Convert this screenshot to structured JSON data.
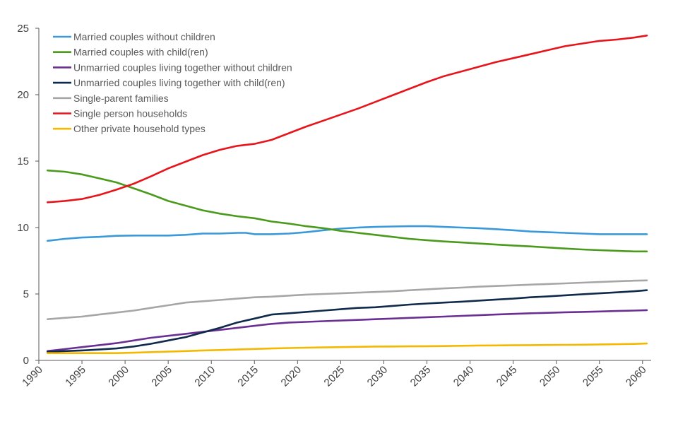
{
  "chart_data": {
    "type": "line",
    "title": "",
    "xlabel": "",
    "ylabel": "",
    "xlim": [
      1990,
      2061
    ],
    "ylim": [
      0,
      25
    ],
    "x_ticks": [
      1990,
      1995,
      2000,
      2005,
      2010,
      2015,
      2020,
      2025,
      2030,
      2035,
      2040,
      2045,
      2050,
      2055,
      2060
    ],
    "y_ticks": [
      0,
      5,
      10,
      15,
      20,
      25
    ],
    "grid": false,
    "legend_position": "top-left",
    "series": [
      {
        "name": "Married couples without children",
        "color": "#3a9ad9",
        "x": [
          1991,
          1993,
          1995,
          1997,
          1999,
          2001,
          2003,
          2005,
          2007,
          2009,
          2011,
          2013,
          2014,
          2015,
          2017,
          2019,
          2021,
          2023,
          2025,
          2027,
          2029,
          2031,
          2033,
          2035,
          2037,
          2039,
          2041,
          2043,
          2045,
          2047,
          2049,
          2051,
          2053,
          2055,
          2057,
          2059,
          2060.5
        ],
        "y": [
          9.0,
          9.15,
          9.25,
          9.3,
          9.38,
          9.4,
          9.4,
          9.4,
          9.45,
          9.55,
          9.55,
          9.6,
          9.6,
          9.5,
          9.5,
          9.55,
          9.65,
          9.8,
          9.92,
          10.0,
          10.05,
          10.08,
          10.1,
          10.1,
          10.05,
          10.0,
          9.95,
          9.88,
          9.8,
          9.7,
          9.65,
          9.6,
          9.55,
          9.5,
          9.5,
          9.5,
          9.5
        ]
      },
      {
        "name": "Married couples with child(ren)",
        "color": "#4a9a1c",
        "x": [
          1991,
          1993,
          1995,
          1997,
          1999,
          2001,
          2003,
          2005,
          2007,
          2009,
          2011,
          2013,
          2015,
          2017,
          2019,
          2021,
          2023,
          2025,
          2027,
          2029,
          2031,
          2033,
          2035,
          2037,
          2039,
          2041,
          2043,
          2045,
          2047,
          2049,
          2051,
          2053,
          2055,
          2057,
          2059,
          2060.5
        ],
        "y": [
          14.3,
          14.2,
          14.0,
          13.7,
          13.4,
          12.95,
          12.5,
          12.0,
          11.65,
          11.3,
          11.05,
          10.85,
          10.7,
          10.45,
          10.3,
          10.1,
          9.95,
          9.75,
          9.6,
          9.45,
          9.3,
          9.15,
          9.05,
          8.95,
          8.88,
          8.8,
          8.72,
          8.65,
          8.58,
          8.5,
          8.42,
          8.35,
          8.3,
          8.25,
          8.2,
          8.2
        ]
      },
      {
        "name": "Unmarried couples living together without children",
        "color": "#6a2f92",
        "x": [
          1991,
          1993,
          1995,
          1997,
          1999,
          2001,
          2003,
          2005,
          2007,
          2009,
          2011,
          2013,
          2015,
          2017,
          2019,
          2021,
          2023,
          2025,
          2027,
          2029,
          2031,
          2033,
          2035,
          2037,
          2039,
          2041,
          2043,
          2045,
          2047,
          2049,
          2051,
          2053,
          2055,
          2057,
          2059,
          2060.5
        ],
        "y": [
          0.7,
          0.85,
          1.0,
          1.15,
          1.3,
          1.5,
          1.7,
          1.85,
          2.0,
          2.15,
          2.3,
          2.45,
          2.6,
          2.75,
          2.85,
          2.9,
          2.95,
          3.0,
          3.05,
          3.1,
          3.15,
          3.2,
          3.25,
          3.3,
          3.35,
          3.4,
          3.45,
          3.5,
          3.55,
          3.58,
          3.62,
          3.65,
          3.68,
          3.72,
          3.75,
          3.78
        ]
      },
      {
        "name": "Unmarried couples living together with child(ren)",
        "color": "#0f2a4a",
        "x": [
          1991,
          1993,
          1995,
          1997,
          1999,
          2001,
          2003,
          2005,
          2007,
          2009,
          2011,
          2013,
          2015,
          2017,
          2019,
          2021,
          2023,
          2025,
          2027,
          2029,
          2031,
          2033,
          2035,
          2037,
          2039,
          2041,
          2043,
          2045,
          2047,
          2049,
          2051,
          2053,
          2055,
          2057,
          2059,
          2060.5
        ],
        "y": [
          0.65,
          0.7,
          0.75,
          0.82,
          0.9,
          1.05,
          1.25,
          1.5,
          1.75,
          2.1,
          2.45,
          2.85,
          3.15,
          3.45,
          3.55,
          3.65,
          3.75,
          3.85,
          3.95,
          4.0,
          4.1,
          4.2,
          4.28,
          4.35,
          4.42,
          4.5,
          4.58,
          4.65,
          4.75,
          4.82,
          4.9,
          4.98,
          5.05,
          5.12,
          5.2,
          5.28
        ]
      },
      {
        "name": "Single-parent families",
        "color": "#a6a6a6",
        "x": [
          1991,
          1993,
          1995,
          1997,
          1999,
          2001,
          2003,
          2005,
          2007,
          2009,
          2011,
          2013,
          2015,
          2017,
          2019,
          2021,
          2023,
          2025,
          2027,
          2029,
          2031,
          2033,
          2035,
          2037,
          2039,
          2041,
          2043,
          2045,
          2047,
          2049,
          2051,
          2053,
          2055,
          2057,
          2059,
          2060.5
        ],
        "y": [
          3.1,
          3.2,
          3.3,
          3.45,
          3.6,
          3.75,
          3.95,
          4.15,
          4.35,
          4.45,
          4.55,
          4.65,
          4.75,
          4.8,
          4.88,
          4.95,
          5.0,
          5.05,
          5.1,
          5.15,
          5.2,
          5.28,
          5.35,
          5.42,
          5.48,
          5.55,
          5.6,
          5.65,
          5.7,
          5.75,
          5.8,
          5.85,
          5.9,
          5.95,
          6.0,
          6.02
        ]
      },
      {
        "name": "Single person households",
        "color": "#e8141b",
        "x": [
          1991,
          1993,
          1995,
          1997,
          1999,
          2001,
          2003,
          2005,
          2007,
          2009,
          2011,
          2013,
          2015,
          2017,
          2019,
          2021,
          2023,
          2025,
          2027,
          2029,
          2031,
          2033,
          2035,
          2037,
          2039,
          2041,
          2043,
          2045,
          2047,
          2049,
          2051,
          2053,
          2055,
          2057,
          2059,
          2060.5
        ],
        "y": [
          11.9,
          12.0,
          12.15,
          12.45,
          12.85,
          13.3,
          13.85,
          14.45,
          14.95,
          15.45,
          15.85,
          16.15,
          16.3,
          16.6,
          17.1,
          17.6,
          18.05,
          18.5,
          18.95,
          19.45,
          19.95,
          20.45,
          20.95,
          21.4,
          21.75,
          22.1,
          22.45,
          22.75,
          23.05,
          23.35,
          23.65,
          23.85,
          24.05,
          24.15,
          24.3,
          24.45
        ]
      },
      {
        "name": "Other private household types",
        "color": "#f5b800",
        "x": [
          1991,
          1993,
          1995,
          1997,
          1999,
          2001,
          2003,
          2005,
          2007,
          2009,
          2011,
          2013,
          2015,
          2017,
          2019,
          2021,
          2023,
          2025,
          2027,
          2029,
          2031,
          2033,
          2035,
          2037,
          2039,
          2041,
          2043,
          2045,
          2047,
          2049,
          2051,
          2053,
          2055,
          2057,
          2059,
          2060.5
        ],
        "y": [
          0.55,
          0.55,
          0.55,
          0.55,
          0.55,
          0.58,
          0.62,
          0.66,
          0.7,
          0.75,
          0.78,
          0.82,
          0.86,
          0.9,
          0.93,
          0.96,
          0.98,
          1.0,
          1.02,
          1.04,
          1.05,
          1.06,
          1.07,
          1.08,
          1.1,
          1.12,
          1.13,
          1.14,
          1.15,
          1.16,
          1.17,
          1.18,
          1.2,
          1.22,
          1.24,
          1.27
        ]
      }
    ]
  }
}
